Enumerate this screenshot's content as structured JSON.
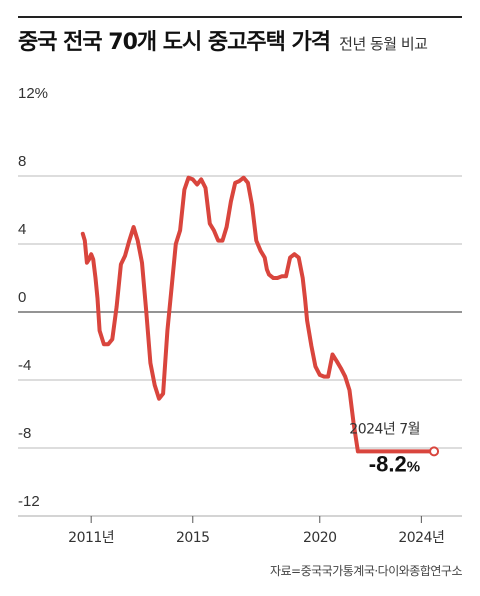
{
  "header": {
    "title": "중국 전국 70개 도시 중고주택 가격",
    "subtitle": "전년 동월 비교"
  },
  "source": "자료=중국국가통계국·다이와종합연구소",
  "chart_data": {
    "type": "line",
    "title": "중국 전국 70개 도시 중고주택 가격",
    "subtitle": "전년 동월 비교",
    "xlabel": "",
    "ylabel": "",
    "ylim": [
      -12,
      12
    ],
    "y_ticks": [
      "12%",
      "8",
      "4",
      "0",
      "-4",
      "-8",
      "-12"
    ],
    "x_ticks": [
      {
        "x": 2011.0,
        "label": "2011년"
      },
      {
        "x": 2015.0,
        "label": "2015"
      },
      {
        "x": 2020.0,
        "label": "2020"
      },
      {
        "x": 2024.0,
        "label": "2024년"
      }
    ],
    "xlim": [
      2009.3,
      2025.6
    ],
    "grid": "horizontal",
    "legend": "none",
    "colors": {
      "line": "#d9453d",
      "grid": "#bbbbbb",
      "zero": "#555555"
    },
    "series": [
      {
        "name": "",
        "x": [
          2010.67,
          2010.75,
          2010.83,
          2010.92,
          2011.0,
          2011.08,
          2011.17,
          2011.25,
          2011.33,
          2011.5,
          2011.67,
          2011.83,
          2012.0,
          2012.17,
          2012.33,
          2012.5,
          2012.67,
          2012.83,
          2013.0,
          2013.17,
          2013.33,
          2013.5,
          2013.67,
          2013.83,
          2014.0,
          2014.17,
          2014.33,
          2014.5,
          2014.67,
          2014.83,
          2015.0,
          2015.17,
          2015.33,
          2015.5,
          2015.67,
          2015.83,
          2016.0,
          2016.17,
          2016.33,
          2016.5,
          2016.67,
          2016.83,
          2017.0,
          2017.17,
          2017.33,
          2017.5,
          2017.67,
          2017.83,
          2017.92,
          2018.0,
          2018.17,
          2018.33,
          2018.5,
          2018.67,
          2018.83,
          2019.0,
          2019.17,
          2019.33,
          2019.42,
          2019.5,
          2019.67,
          2019.83,
          2020.0,
          2020.17,
          2020.33,
          2020.5,
          2020.67,
          2020.83,
          2021.0,
          2021.17,
          2021.33,
          2021.5,
          2021.67,
          2021.83,
          2022.0,
          2022.17,
          2022.33,
          2022.5,
          2022.67,
          2022.83,
          2023.0,
          2023.17,
          2023.33,
          2023.5,
          2023.67,
          2023.83,
          2024.0,
          2024.17,
          2024.33,
          2024.5
        ],
        "y": [
          4.6,
          4.2,
          2.9,
          3.1,
          3.4,
          3.1,
          2.0,
          0.8,
          -1.1,
          -1.9,
          -1.9,
          -1.6,
          0.3,
          2.8,
          3.3,
          4.2,
          5.0,
          4.2,
          2.9,
          0.0,
          -3.0,
          -4.3,
          -5.1,
          -4.8,
          -1.1,
          1.5,
          4.0,
          4.8,
          7.2,
          7.9,
          7.8,
          7.5,
          7.8,
          7.3,
          5.2,
          4.8,
          4.2,
          4.2,
          5.0,
          6.5,
          7.6,
          7.7,
          7.9,
          7.6,
          6.3,
          4.2,
          3.6,
          3.2,
          2.5,
          2.2,
          2.0,
          2.0,
          2.1,
          2.1,
          3.2,
          3.4,
          3.2,
          2.0,
          0.8,
          -0.5,
          -2.0,
          -3.2,
          -3.7,
          -3.8,
          -3.8,
          -2.5,
          -2.9,
          -3.3,
          -3.8,
          -4.6,
          -6.5,
          -8.2,
          -8.2,
          -8.2,
          -8.2,
          -8.2,
          -8.2,
          -8.2,
          -8.2,
          -8.2,
          -8.2,
          -8.2,
          -8.2,
          -8.2,
          -8.2,
          -8.2,
          -8.2,
          -8.2,
          -8.2,
          -8.2
        ],
        "note": ""
      }
    ],
    "annotation": {
      "label": "2024년 7월",
      "value": "-8.2",
      "unit": "%",
      "x": 2024.5,
      "y": -8.2
    }
  }
}
